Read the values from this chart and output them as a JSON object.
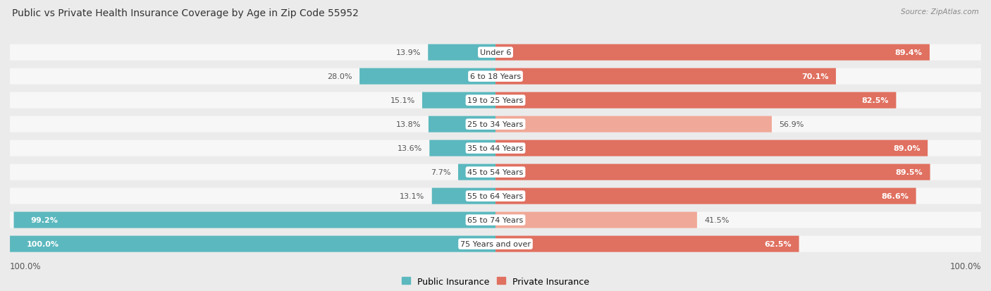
{
  "title": "Public vs Private Health Insurance Coverage by Age in Zip Code 55952",
  "source": "Source: ZipAtlas.com",
  "categories": [
    "Under 6",
    "6 to 18 Years",
    "19 to 25 Years",
    "25 to 34 Years",
    "35 to 44 Years",
    "45 to 54 Years",
    "55 to 64 Years",
    "65 to 74 Years",
    "75 Years and over"
  ],
  "public_values": [
    13.9,
    28.0,
    15.1,
    13.8,
    13.6,
    7.7,
    13.1,
    99.2,
    100.0
  ],
  "private_values": [
    89.4,
    70.1,
    82.5,
    56.9,
    89.0,
    89.5,
    86.6,
    41.5,
    62.5
  ],
  "public_color": "#5BB8BE",
  "private_color_dark": "#E07060",
  "private_color_light": "#F0A898",
  "bg_color": "#EBEBEB",
  "row_bg_color": "#F7F7F7",
  "label_fontsize": 8.0,
  "title_fontsize": 10.0,
  "legend_labels": [
    "Public Insurance",
    "Private Insurance"
  ],
  "private_dark_threshold": 60.0
}
